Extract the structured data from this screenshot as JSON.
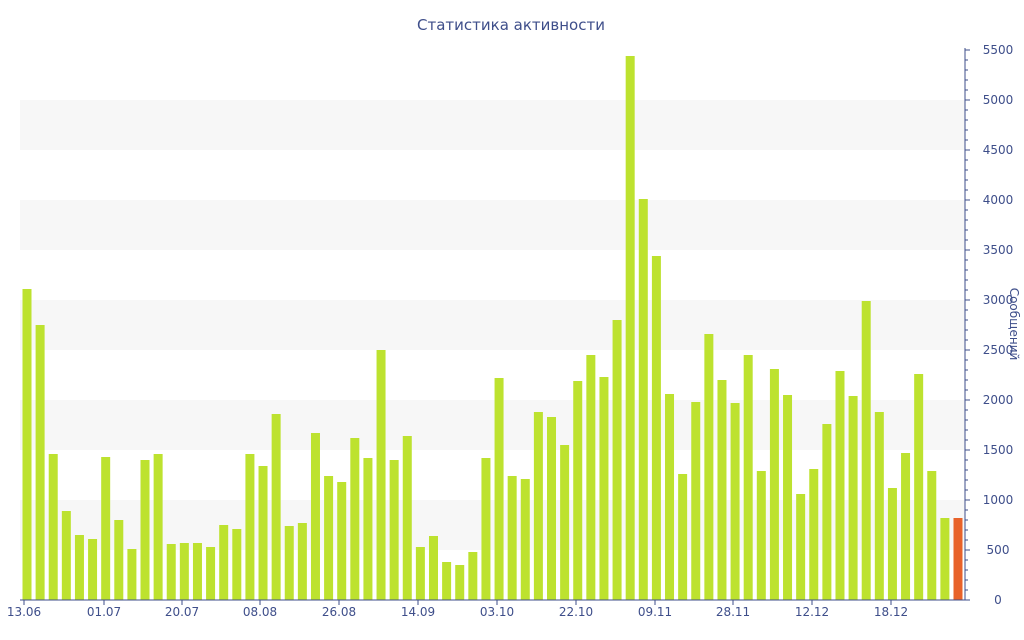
{
  "chart_data": {
    "type": "bar",
    "title": "Статистика активности",
    "xlabel": "",
    "ylabel": "Сообщений",
    "y_axis_side": "right",
    "ylim": [
      0,
      5500
    ],
    "yticks": [
      0,
      500,
      1000,
      1500,
      2000,
      2500,
      3000,
      3500,
      4000,
      4500,
      5000,
      5500
    ],
    "x_tick_labels": [
      {
        "label": "13.06",
        "index": 0
      },
      {
        "label": "01.07",
        "index": 6
      },
      {
        "label": "20.07",
        "index": 12
      },
      {
        "label": "08.08",
        "index": 18
      },
      {
        "label": "26.08",
        "index": 24
      },
      {
        "label": "14.09",
        "index": 30
      },
      {
        "label": "03.10",
        "index": 36
      },
      {
        "label": "22.10",
        "index": 42
      },
      {
        "label": "09.11",
        "index": 48
      },
      {
        "label": "28.11",
        "index": 54
      },
      {
        "label": "12.12",
        "index": 60
      },
      {
        "label": "18.12",
        "index": 66
      }
    ],
    "colors": {
      "bar": "#bde22f",
      "highlight": "#e8622a",
      "band": "#f7f7f7",
      "axis": "#3e4e8a"
    },
    "values": [
      3110,
      2750,
      1460,
      890,
      650,
      610,
      1430,
      800,
      510,
      1400,
      1460,
      560,
      570,
      570,
      530,
      750,
      710,
      1460,
      1340,
      1860,
      740,
      770,
      1670,
      1240,
      1180,
      1620,
      1420,
      2500,
      1400,
      1640,
      530,
      640,
      380,
      350,
      480,
      1420,
      2220,
      1240,
      1210,
      1880,
      1830,
      1550,
      2190,
      2450,
      2230,
      2800,
      5440,
      4010,
      3440,
      2060,
      1260,
      1980,
      2660,
      2200,
      1970,
      2450,
      1290,
      2310,
      2050,
      1060,
      1310,
      1760,
      2290,
      2040,
      2990,
      1880,
      1120,
      1470,
      2260,
      1290,
      820,
      820
    ],
    "highlight_index": 71
  }
}
